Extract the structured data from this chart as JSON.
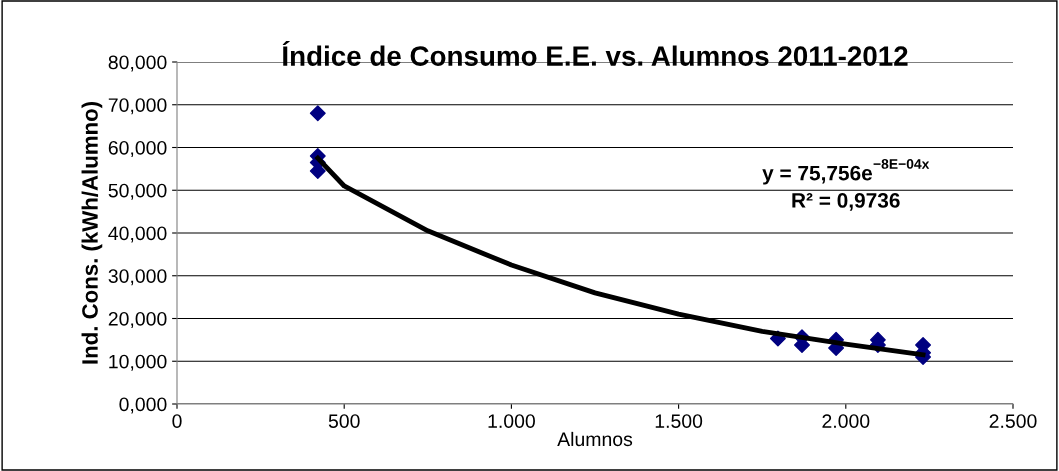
{
  "chart_data": {
    "type": "scatter",
    "title": "Índice de Consumo E.E. vs. Alumnos 2011-2012",
    "xlabel": "Alumnos",
    "ylabel": "Ind. Cons. (kWh/Alumno)",
    "grid": "y",
    "legend": false,
    "annotations": [
      "y = 75,756e$^{−8E−04x}$",
      "R² = 0,9736"
    ],
    "series": [
      {
        "marker": "diamond",
        "color": "#000080",
        "x": [
          421,
          421,
          421,
          421,
          1797,
          1869,
          1869,
          1971,
          1971,
          2096,
          2096,
          2231,
          2231,
          2231
        ],
        "values": [
          68,
          58,
          56.5,
          54.5,
          15.3,
          15.6,
          13.8,
          15,
          13.1,
          15,
          13.8,
          13.8,
          12,
          11
        ]
      },
      {
        "type": "line",
        "color": "#000000",
        "x": [
          421,
          500,
          750,
          1000,
          1250,
          1500,
          1750,
          2000,
          2231
        ],
        "values": [
          57.5,
          51,
          40.5,
          32.5,
          26,
          21,
          17,
          14,
          11.5
        ]
      }
    ],
    "xlim": [
      0,
      2500
    ],
    "ylim": [
      0,
      80
    ],
    "xticks": [
      0,
      500,
      {
        "value": 1000,
        "label": "1.000"
      },
      {
        "value": 1500,
        "label": "1.500"
      },
      {
        "value": 2000,
        "label": "2.000"
      },
      {
        "value": 2500,
        "label": "2.500"
      }
    ],
    "yticks": [
      {
        "value": 0,
        "label": "0,000"
      },
      {
        "value": 10,
        "label": "10,000"
      },
      {
        "value": 20,
        "label": "20,000"
      },
      {
        "value": 30,
        "label": "30,000"
      },
      {
        "value": 40,
        "label": "40,000"
      },
      {
        "value": 50,
        "label": "50,000"
      },
      {
        "value": 60,
        "label": "60,000"
      },
      {
        "value": 70,
        "label": "70,000"
      },
      {
        "value": 80,
        "label": "80,000"
      }
    ]
  }
}
